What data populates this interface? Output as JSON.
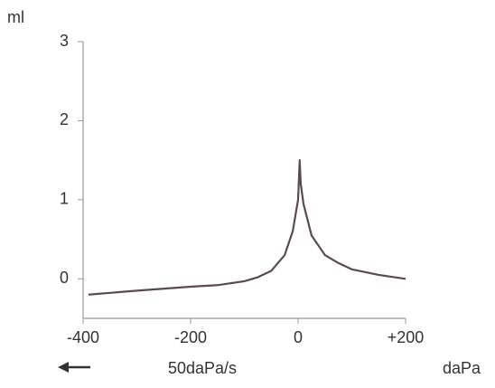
{
  "chart_data": {
    "type": "line",
    "y_label": "ml",
    "x_label": "daPa",
    "annotation": "50daPa/s",
    "x": [
      -390,
      -300,
      -200,
      -150,
      -100,
      -75,
      -50,
      -25,
      -10,
      0,
      3,
      5,
      10,
      25,
      50,
      75,
      100,
      150,
      200
    ],
    "series": [
      {
        "color": "#5a4a55",
        "values": [
          -0.2,
          -0.15,
          -0.1,
          -0.08,
          -0.03,
          0.02,
          0.1,
          0.3,
          0.6,
          1.0,
          1.5,
          1.2,
          0.95,
          0.55,
          0.3,
          0.2,
          0.12,
          0.05,
          0.0
        ]
      }
    ],
    "xlim": [
      -400,
      200
    ],
    "ylim": [
      -0.5,
      3
    ],
    "xticks": [
      -400,
      -200,
      0,
      {
        "value": 200,
        "label": "+200"
      }
    ],
    "yticks": [
      0,
      1,
      2,
      3
    ]
  }
}
